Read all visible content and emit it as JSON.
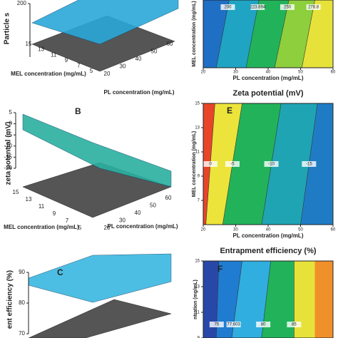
{
  "chart_data": [
    {
      "type": "surface",
      "ylabel": "Particle s",
      "ylim": [
        100,
        200
      ],
      "yticks": [
        200
      ],
      "mel_label": "MEL concentration (mg/mL)",
      "mel_ticks": [
        15,
        13,
        11,
        9,
        7,
        5
      ],
      "pl_label": "PL concentration (mg/mL)",
      "pl_ticks": [
        20,
        30,
        40,
        50,
        60
      ],
      "color": "#2aa8d8"
    },
    {
      "type": "contour",
      "ylabel": "MEL concentration (mg/mL)",
      "xlabel": "PL concentration (mg/mL)",
      "xlim": [
        20,
        60
      ],
      "xticks": [
        20,
        30,
        40,
        50,
        60
      ],
      "levels": [
        200,
        223.894,
        250,
        278.8
      ],
      "colors": [
        "#1f6fc4",
        "#1fa4c4",
        "#22b35a",
        "#8dcf3c",
        "#e6e23a"
      ]
    },
    {
      "type": "surface",
      "label": "B",
      "ylabel": "zeta potential (mV)",
      "ylim": [
        -20,
        5
      ],
      "yticks": [
        5,
        0,
        -5,
        -10,
        -15,
        -20
      ],
      "mel_label": "MEL concentration (mg/mL)",
      "mel_ticks": [
        15,
        13,
        11,
        9,
        7,
        5
      ],
      "pl_label": "PL concentration (mg/mL)",
      "pl_ticks": [
        20,
        30,
        40,
        50,
        60
      ],
      "color": "#2ab0a0"
    },
    {
      "type": "contour",
      "title": "Zeta potential (mV)",
      "label": "E",
      "ylabel": "MEL concentration (mg/mL)",
      "xlabel": "PL concentration (mg/mL)",
      "xlim": [
        20,
        60
      ],
      "xticks": [
        20,
        30,
        40,
        50,
        60
      ],
      "ylim": [
        5,
        15
      ],
      "yticks": [
        15,
        13,
        11,
        9,
        7
      ],
      "levels": [
        0,
        -5,
        -10,
        -15
      ],
      "colors": [
        "#e8442a",
        "#ece43a",
        "#22b35a",
        "#1fa4b4",
        "#1f7cc4"
      ]
    },
    {
      "type": "surface",
      "label": "C",
      "ylabel": "ent efficiency (%)",
      "ylim": [
        70,
        90
      ],
      "yticks": [
        90,
        80,
        70
      ],
      "color": "#3ab8e0"
    },
    {
      "type": "contour",
      "title": "Entrapment efficiency (%)",
      "label": "F",
      "ylabel": "ntration (mg/mL)",
      "ylim": [
        9,
        15
      ],
      "yticks": [
        15,
        13,
        11,
        9
      ],
      "levels": [
        75,
        77.603,
        80,
        85
      ],
      "colors": [
        "#2848a8",
        "#1f7cd0",
        "#30aee0",
        "#22b35a",
        "#e6e23a",
        "#f0902a"
      ]
    }
  ]
}
